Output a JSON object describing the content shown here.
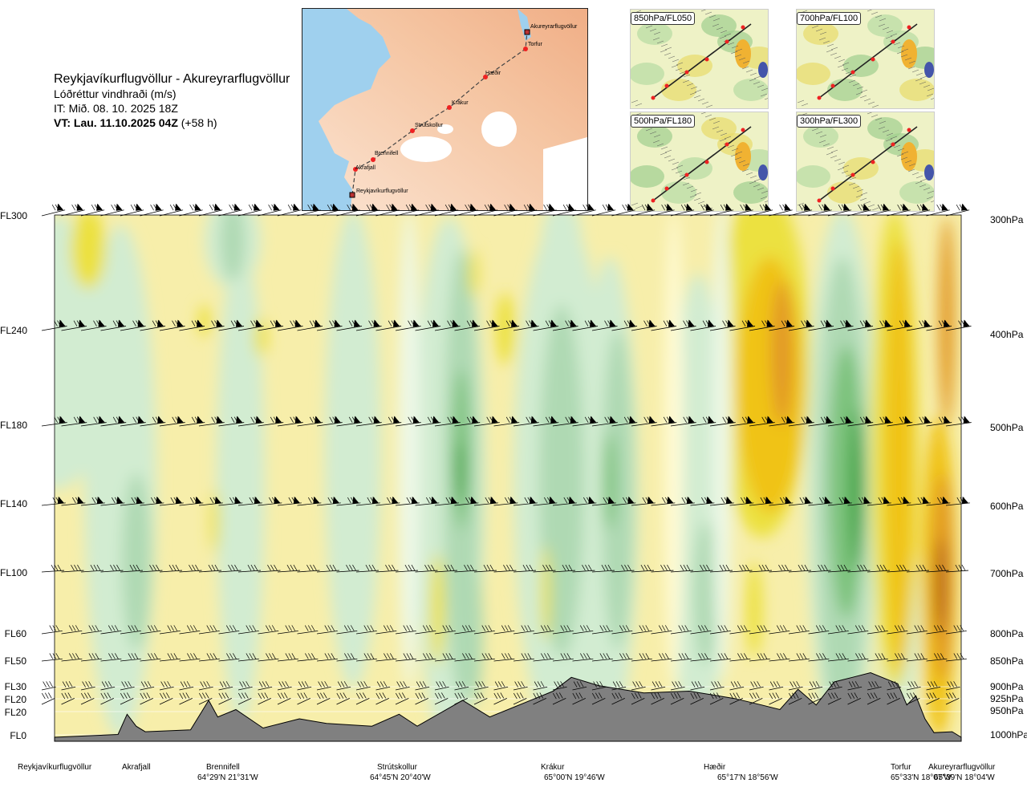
{
  "title": {
    "route": "Reykjavíkurflugvöllur - Akureyrarflugvöllur",
    "quantity": "Lóðréttur vindhraði (m/s)",
    "issue": "IT: Mið. 08. 10. 2025 18Z",
    "valid_bold": "VT: Lau. 11.10.2025 04Z",
    "valid_rest": " (+58 h)"
  },
  "route_map": {
    "points": [
      "Reykjavíkurflugvöllur",
      "Akrafjall",
      "Brennifell",
      "Strútskollur",
      "Krákur",
      "Hæðir",
      "Torfur",
      "Akureyrarflugvöllur"
    ]
  },
  "level_maps": [
    {
      "label": "850hPa/FL050"
    },
    {
      "label": "700hPa/FL100"
    },
    {
      "label": "500hPa/FL180"
    },
    {
      "label": "300hPa/FL300"
    }
  ],
  "colors": {
    "terrain": "#808080",
    "pos_light": "#fffbd6",
    "pos_1": "#f7eeaa",
    "pos_2": "#ece141",
    "pos_3": "#f0c314",
    "pos_4": "#e29a27",
    "pos_5": "#b4621a",
    "neg_light": "#edf8e7",
    "neg_1": "#d2ecd1",
    "neg_2": "#afd9b3",
    "neg_3": "#7cc27b",
    "neg_4": "#2e9e2e"
  },
  "chart_data": {
    "type": "heatmap",
    "title": "Lóðréttur vindhraði (m/s)",
    "xlabel": "",
    "ylabel": "",
    "flight_levels": [
      {
        "fl": "FL300",
        "hpa": "300hPa"
      },
      {
        "fl": "FL240",
        "hpa": "400hPa"
      },
      {
        "fl": "FL180",
        "hpa": "500hPa"
      },
      {
        "fl": "FL140",
        "hpa": "600hPa"
      },
      {
        "fl": "FL100",
        "hpa": "700hPa"
      },
      {
        "fl": "FL60",
        "hpa": "800hPa"
      },
      {
        "fl": "FL50",
        "hpa": "850hPa"
      },
      {
        "fl": "FL30",
        "hpa": "900hPa"
      },
      {
        "fl": "FL20",
        "hpa": "925hPa"
      },
      {
        "fl": "FL20",
        "hpa": "950hPa"
      },
      {
        "fl": "FL0",
        "hpa": "1000hPa"
      }
    ],
    "stations": [
      {
        "name": "Reykjavíkurflugvöllur",
        "coord": ""
      },
      {
        "name": "Akrafjall",
        "coord": ""
      },
      {
        "name": "Brennifell",
        "coord": "64°29'N 21°31'W"
      },
      {
        "name": "Strútskollur",
        "coord": "64°45'N 20°40'W"
      },
      {
        "name": "Krákur",
        "coord": "65°00'N 19°46'W"
      },
      {
        "name": "Hæðir",
        "coord": "65°17'N 18°56'W"
      },
      {
        "name": "Torfur",
        "coord": "65°33'N 18°07'W"
      },
      {
        "name": "Akureyrarflugvöllur",
        "coord": "65°39'N 18°04'W"
      }
    ],
    "terrain_profile_m": [
      [
        0,
        0
      ],
      [
        0.07,
        30
      ],
      [
        0.08,
        250
      ],
      [
        0.09,
        120
      ],
      [
        0.1,
        60
      ],
      [
        0.15,
        80
      ],
      [
        0.17,
        400
      ],
      [
        0.18,
        220
      ],
      [
        0.2,
        300
      ],
      [
        0.23,
        100
      ],
      [
        0.27,
        200
      ],
      [
        0.3,
        150
      ],
      [
        0.35,
        120
      ],
      [
        0.38,
        250
      ],
      [
        0.4,
        120
      ],
      [
        0.45,
        400
      ],
      [
        0.48,
        220
      ],
      [
        0.52,
        380
      ],
      [
        0.55,
        500
      ],
      [
        0.57,
        650
      ],
      [
        0.6,
        560
      ],
      [
        0.65,
        480
      ],
      [
        0.7,
        500
      ],
      [
        0.75,
        420
      ],
      [
        0.78,
        350
      ],
      [
        0.8,
        300
      ],
      [
        0.82,
        520
      ],
      [
        0.84,
        350
      ],
      [
        0.86,
        600
      ],
      [
        0.88,
        650
      ],
      [
        0.9,
        700
      ],
      [
        0.92,
        620
      ],
      [
        0.93,
        580
      ],
      [
        0.94,
        350
      ],
      [
        0.95,
        450
      ],
      [
        0.96,
        200
      ],
      [
        0.97,
        50
      ],
      [
        0.99,
        60
      ],
      [
        1.0,
        0
      ]
    ]
  }
}
